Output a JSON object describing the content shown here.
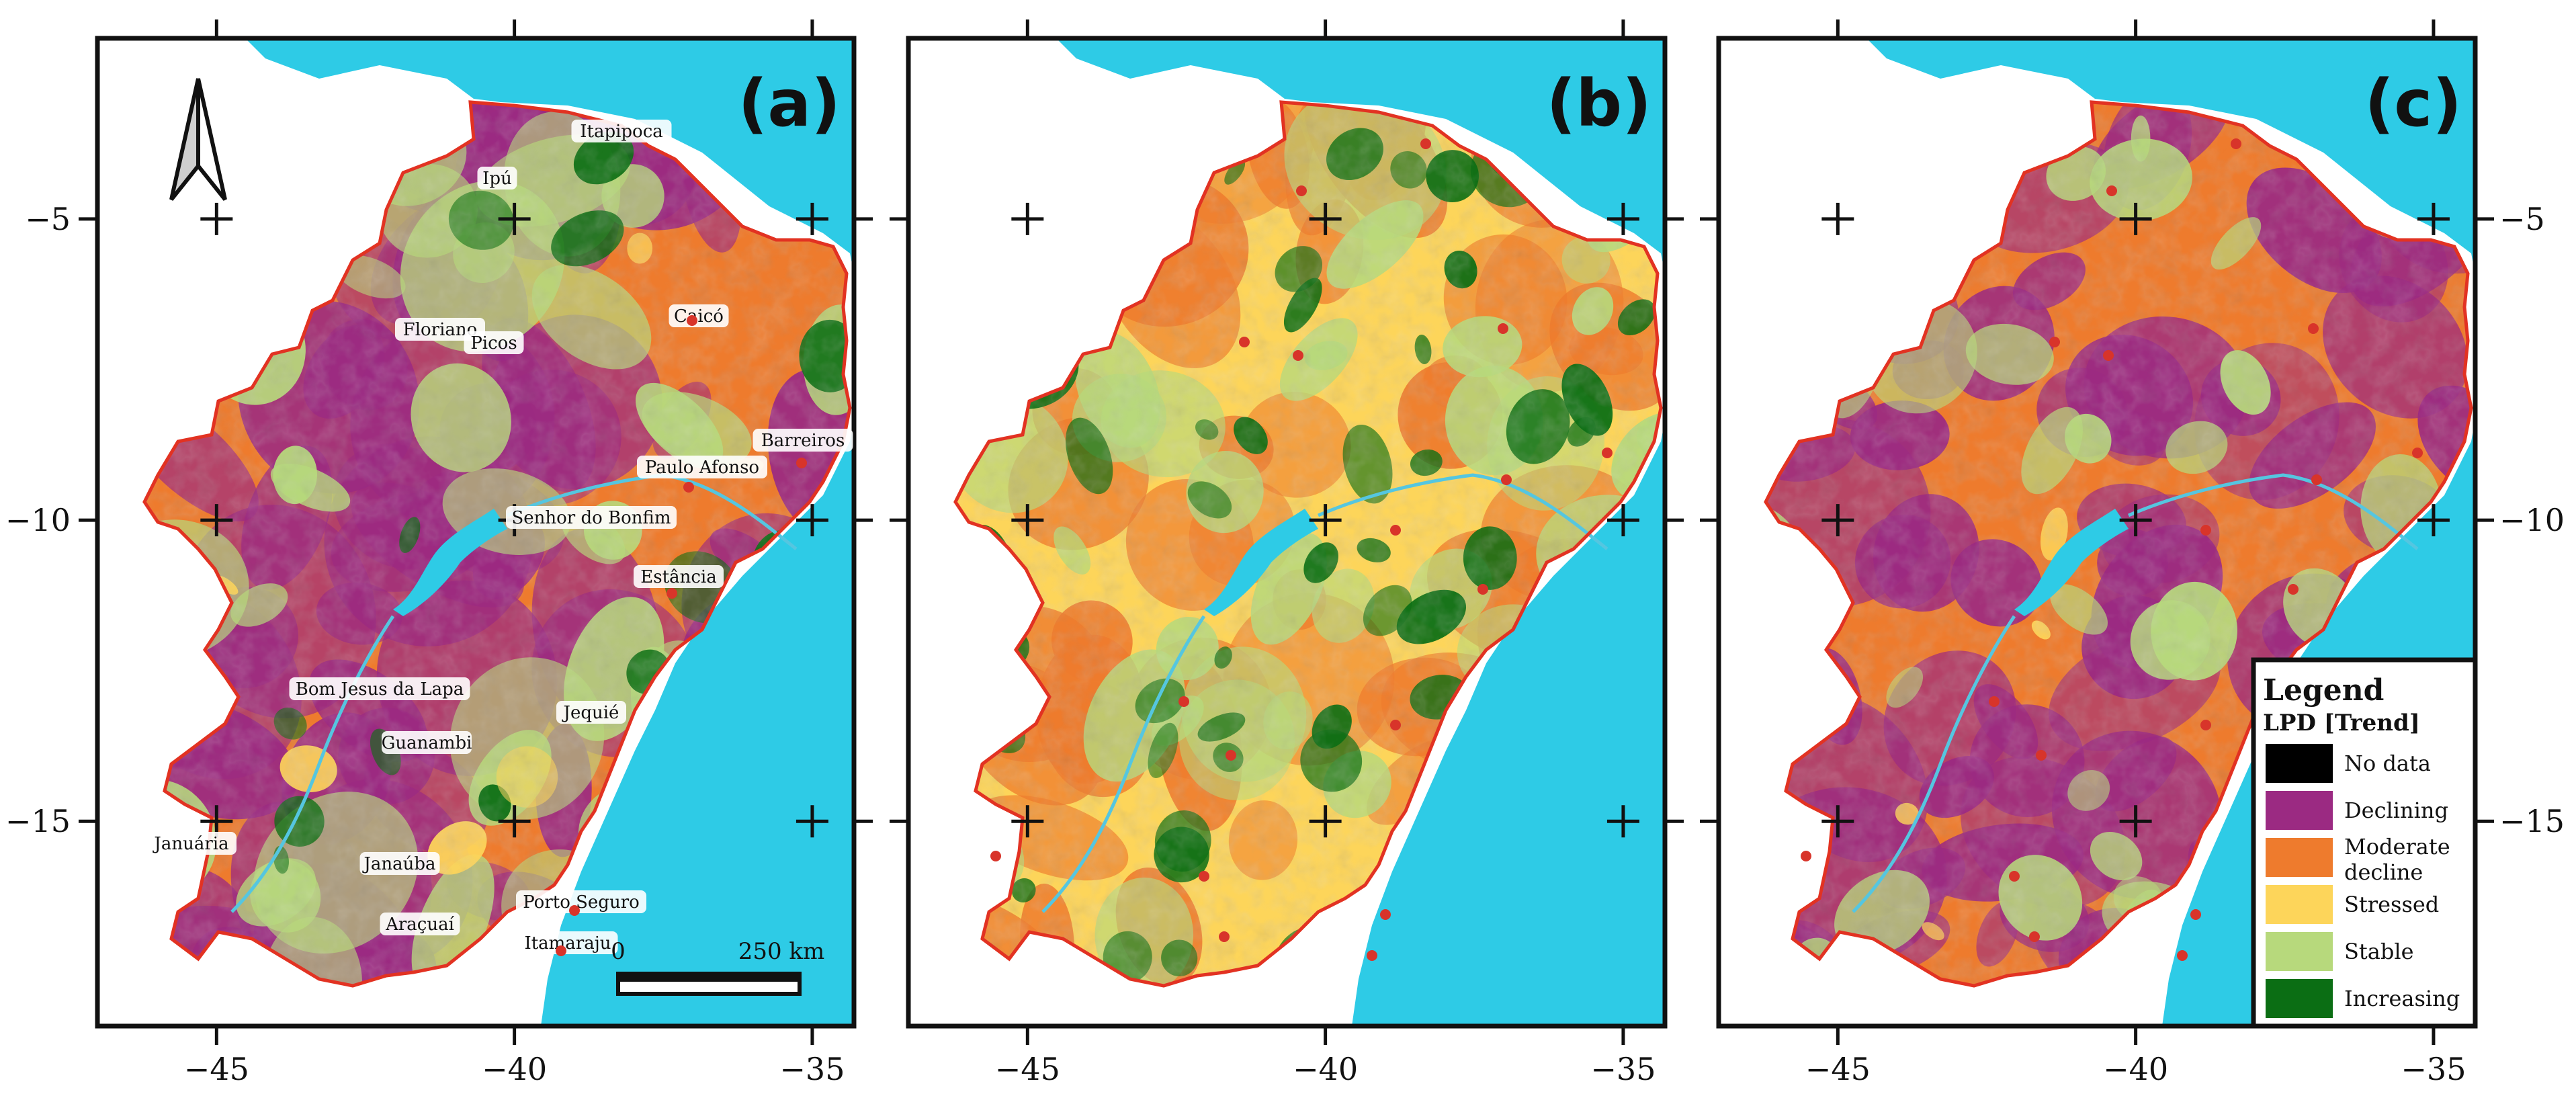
{
  "panels": [
    {
      "label": "(a)"
    },
    {
      "label": "(b)"
    },
    {
      "label": "(c)"
    }
  ],
  "axes": {
    "x_ticks": [
      "−45",
      "−40",
      "−35"
    ],
    "y_ticks": [
      "−5",
      "−10",
      "−15"
    ]
  },
  "cities": [
    {
      "name": "Itapipoca"
    },
    {
      "name": "Ipú"
    },
    {
      "name": "Caicó"
    },
    {
      "name": "Floriano"
    },
    {
      "name": "Picos"
    },
    {
      "name": "Barreiros"
    },
    {
      "name": "Paulo Afonso"
    },
    {
      "name": "Senhor do Bonfim"
    },
    {
      "name": "Estância"
    },
    {
      "name": "Bom Jesus da Lapa"
    },
    {
      "name": "Jequié"
    },
    {
      "name": "Guanambi"
    },
    {
      "name": "Januária"
    },
    {
      "name": "Janaúba"
    },
    {
      "name": "Porto Seguro"
    },
    {
      "name": "Araçuaí"
    },
    {
      "name": "Itamaraju"
    }
  ],
  "scale_bar": {
    "zero": "0",
    "end": "250 km"
  },
  "legend": {
    "title": "Legend",
    "subtitle": "LPD [Trend]",
    "items": [
      {
        "label": "No data",
        "color": "#000000"
      },
      {
        "label": "Declining",
        "color": "#9b2a82"
      },
      {
        "label": "Moderate",
        "label2": "decline",
        "color": "#ee7b2d"
      },
      {
        "label": "Stressed",
        "color": "#fdd55a"
      },
      {
        "label": "Stable",
        "color": "#b7d97c"
      },
      {
        "label": "Increasing",
        "color": "#0b6e14"
      }
    ]
  },
  "colors": {
    "sea": "#2ecbe6",
    "land": "#ffffff",
    "border": "#e23222",
    "river": "#55c6e0",
    "city_dot": "#d8342a"
  },
  "north_arrow_icon": "north-arrow-icon"
}
